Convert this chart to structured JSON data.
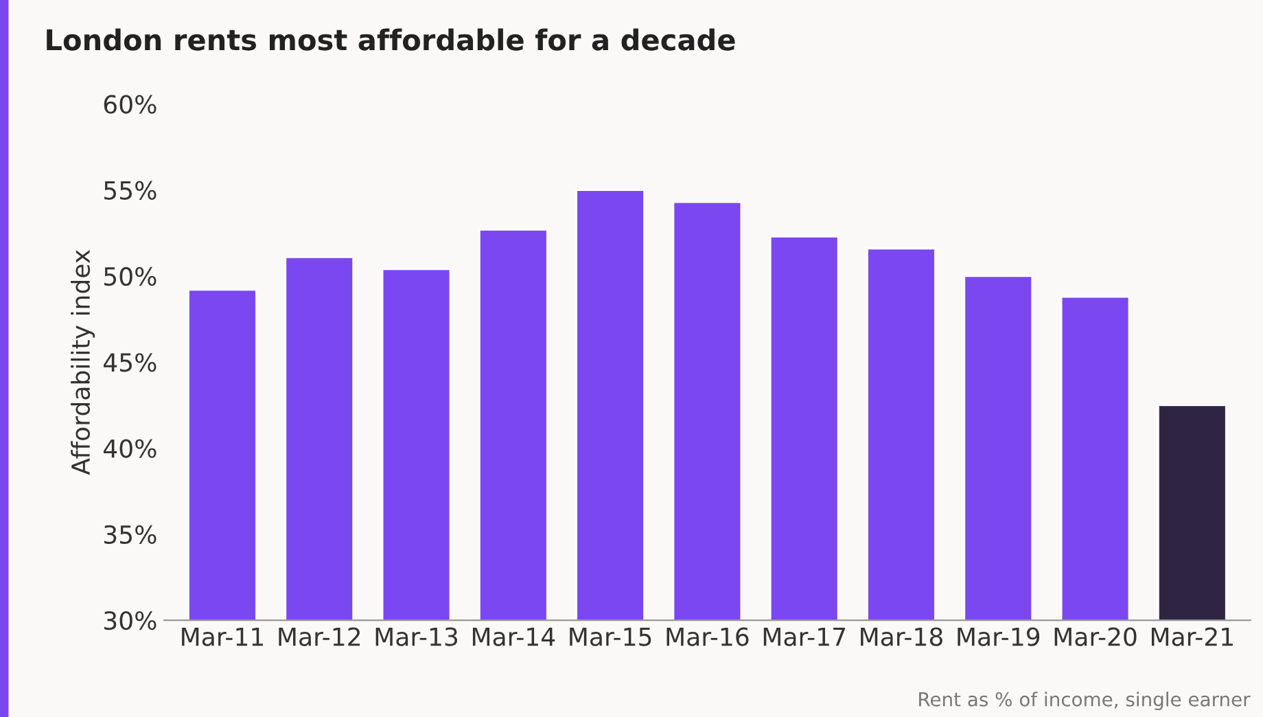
{
  "chart_data": {
    "type": "bar",
    "title": "London rents most affordable for a decade",
    "ylabel": "Affordability index",
    "categories": [
      "Mar-11",
      "Mar-12",
      "Mar-13",
      "Mar-14",
      "Mar-15",
      "Mar-16",
      "Mar-17",
      "Mar-18",
      "Mar-19",
      "Mar-20",
      "Mar-21"
    ],
    "values": [
      49.2,
      51.1,
      50.4,
      52.7,
      55.0,
      54.3,
      52.3,
      51.6,
      50.0,
      48.8,
      42.5
    ],
    "colors": [
      "#7b47f1",
      "#7b47f1",
      "#7b47f1",
      "#7b47f1",
      "#7b47f1",
      "#7b47f1",
      "#7b47f1",
      "#7b47f1",
      "#7b47f1",
      "#7b47f1",
      "#2f2542"
    ],
    "ylim": [
      30,
      60
    ],
    "yticks": [
      {
        "value": 30,
        "label": "30%"
      },
      {
        "value": 35,
        "label": "35%"
      },
      {
        "value": 40,
        "label": "40%"
      },
      {
        "value": 45,
        "label": "45%"
      },
      {
        "value": 50,
        "label": "50%"
      },
      {
        "value": 55,
        "label": "55%"
      },
      {
        "value": 60,
        "label": "60%"
      }
    ],
    "grid": false,
    "legend": false,
    "annotations": [
      "Rent as % of income, single earner"
    ]
  }
}
